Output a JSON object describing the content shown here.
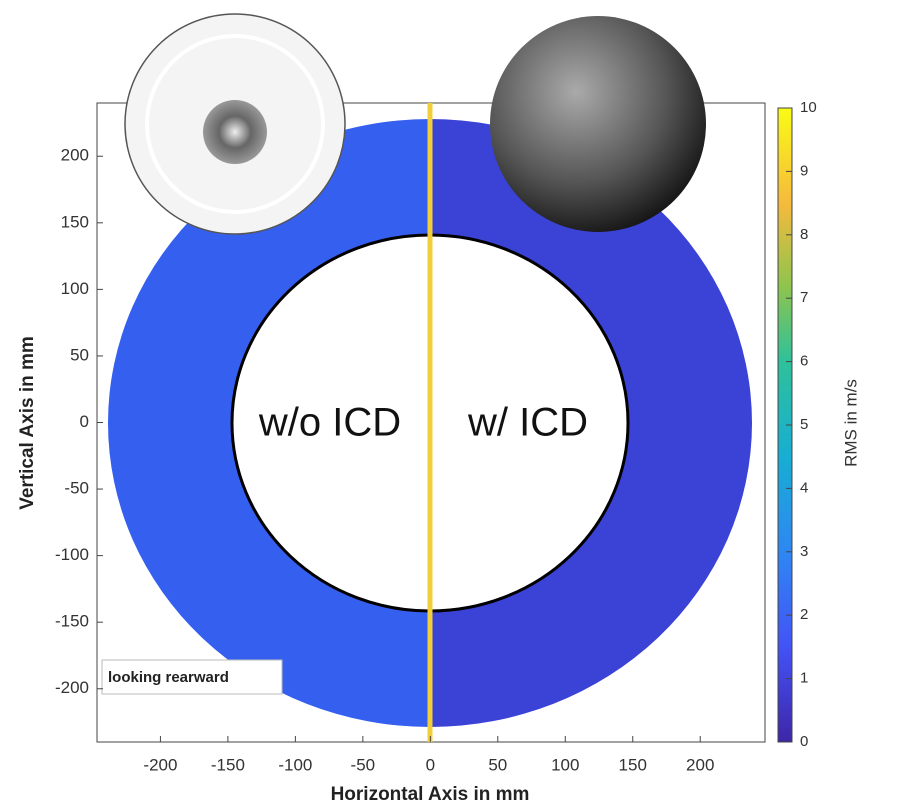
{
  "chart_data": {
    "type": "heatmap",
    "xlabel": "Horizontal Axis in mm",
    "ylabel": "Vertical Axis in mm",
    "xlim": [
      -247,
      248
    ],
    "ylim": [
      -240,
      240
    ],
    "xticks": [
      -200,
      -150,
      -100,
      -50,
      0,
      50,
      100,
      150,
      200
    ],
    "yticks": [
      -200,
      -150,
      -100,
      -50,
      0,
      50,
      100,
      150,
      200
    ],
    "colorbar": {
      "label": "RMS in m/s",
      "lim": [
        0,
        10
      ],
      "ticks": [
        0,
        1,
        2,
        3,
        4,
        5,
        6,
        7,
        8,
        9,
        10
      ]
    },
    "annotations": [
      "w/o ICD",
      "w/ ICD",
      "looking rearward"
    ]
  }
}
